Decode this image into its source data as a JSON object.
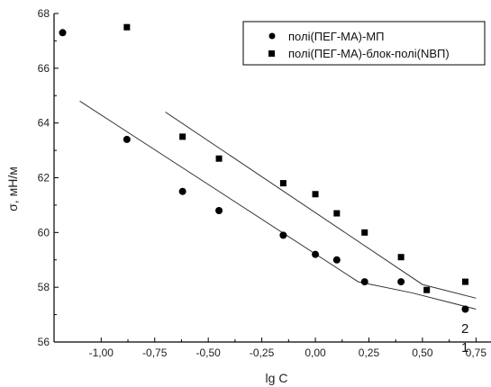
{
  "chart_data": {
    "type": "scatter",
    "title": "",
    "xlabel": "lg C",
    "ylabel": "σ, мН/м",
    "xlim": [
      -1.22,
      0.82
    ],
    "ylim": [
      56,
      68
    ],
    "x_ticks": [
      "-1,00",
      "-0,75",
      "-0,50",
      "-0,25",
      "0,00",
      "0,25",
      "0,50",
      "0,75"
    ],
    "y_ticks": [
      "56",
      "58",
      "60",
      "62",
      "64",
      "66",
      "68"
    ],
    "grid": false,
    "legend_position": "top-right",
    "series": [
      {
        "name": "полі(ПЕГ-МА)-МП",
        "marker": "circle",
        "color": "#000000",
        "points": [
          {
            "x": -1.18,
            "y": 67.3
          },
          {
            "x": -0.88,
            "y": 63.4
          },
          {
            "x": -0.62,
            "y": 61.5
          },
          {
            "x": -0.45,
            "y": 60.8
          },
          {
            "x": -0.15,
            "y": 59.9
          },
          {
            "x": 0.0,
            "y": 59.2
          },
          {
            "x": 0.1,
            "y": 59.0
          },
          {
            "x": 0.23,
            "y": 58.2
          },
          {
            "x": 0.4,
            "y": 58.2
          },
          {
            "x": 0.7,
            "y": 57.2
          }
        ]
      },
      {
        "name": "полі(ПЕГ-МА)-блок-полі(NВП)",
        "marker": "square",
        "color": "#000000",
        "points": [
          {
            "x": -0.88,
            "y": 67.5
          },
          {
            "x": -0.62,
            "y": 63.5
          },
          {
            "x": -0.45,
            "y": 62.7
          },
          {
            "x": -0.15,
            "y": 61.8
          },
          {
            "x": 0.0,
            "y": 61.4
          },
          {
            "x": 0.1,
            "y": 60.7
          },
          {
            "x": 0.23,
            "y": 60.0
          },
          {
            "x": 0.4,
            "y": 59.1
          },
          {
            "x": 0.52,
            "y": 57.9
          },
          {
            "x": 0.7,
            "y": 58.2
          }
        ]
      }
    ],
    "fit_lines": [
      {
        "label": "1",
        "points": [
          {
            "x": -1.1,
            "y": 64.8
          },
          {
            "x": 0.2,
            "y": 58.2
          },
          {
            "x": 0.45,
            "y": 57.8
          },
          {
            "x": 0.75,
            "y": 57.2
          }
        ]
      },
      {
        "label": "2",
        "points": [
          {
            "x": -0.7,
            "y": 64.4
          },
          {
            "x": 0.5,
            "y": 58.1
          },
          {
            "x": 0.75,
            "y": 57.6
          }
        ]
      }
    ]
  }
}
